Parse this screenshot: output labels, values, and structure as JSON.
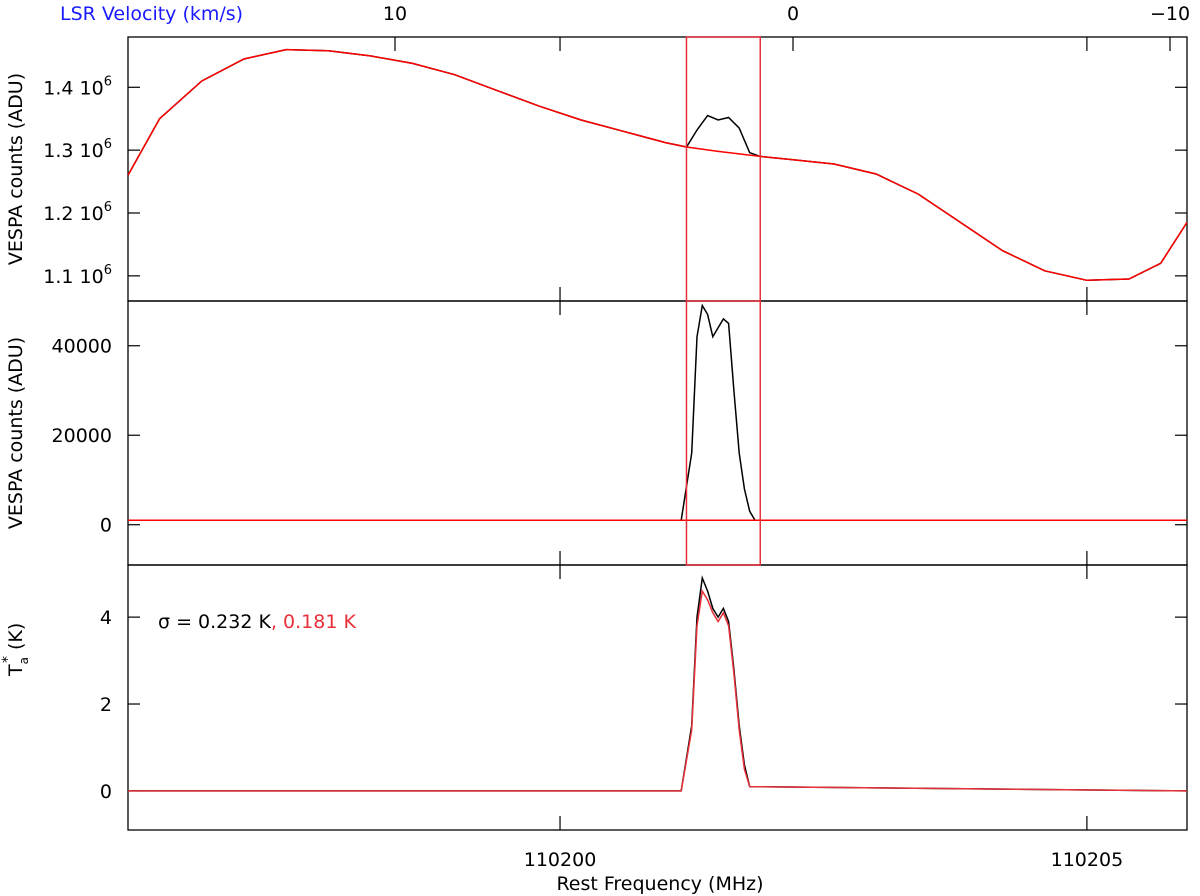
{
  "colors": {
    "black": "#000000",
    "red": "#ff0000",
    "pinkred": "#e8303a",
    "blue": "#1a1aff"
  },
  "top_axis": {
    "label": "LSR Velocity (km/s)",
    "ticks": [
      {
        "value": 10,
        "label": "10"
      },
      {
        "value": 0,
        "label": "0"
      },
      {
        "value": -10,
        "label": "−10"
      }
    ]
  },
  "x_axis": {
    "label": "Rest Frequency (MHz)",
    "ticks": [
      {
        "value": 110200,
        "label": "110200"
      },
      {
        "value": 110205,
        "label": "110205"
      }
    ]
  },
  "window_marker": {
    "range_mhz": [
      110201.2,
      110201.9
    ]
  },
  "panels": {
    "top": {
      "ylabel": "VESPA counts (ADU)",
      "ticks": [
        {
          "value": 1400000,
          "mantissa": "1.4",
          "exp_base": "10",
          "exp": "6"
        },
        {
          "value": 1300000,
          "mantissa": "1.3",
          "exp_base": "10",
          "exp": "6"
        },
        {
          "value": 1200000,
          "mantissa": "1.2",
          "exp_base": "10",
          "exp": "6"
        },
        {
          "value": 1100000,
          "mantissa": "1.1",
          "exp_base": "10",
          "exp": "6"
        }
      ]
    },
    "middle": {
      "ylabel": "VESPA counts (ADU)",
      "ticks": [
        {
          "value": 0,
          "label": "0"
        },
        {
          "value": 20000,
          "label": "20000"
        },
        {
          "value": 40000,
          "label": "40000"
        }
      ]
    },
    "bottom": {
      "ylabel_base": "T",
      "ylabel_sup": "*",
      "ylabel_sub": "a",
      "ylabel_unit": " (K)",
      "ticks": [
        {
          "value": 0,
          "label": "0"
        },
        {
          "value": 2,
          "label": "2"
        },
        {
          "value": 4,
          "label": "4"
        }
      ],
      "sigma_symbol": "σ",
      "sigma_black": " = 0.232 K",
      "sigma_red": ", 0.181 K"
    }
  },
  "chart_data": {
    "type": "line",
    "x_unit": "MHz",
    "xlim": [
      110195.9,
      110205.95
    ],
    "panels": [
      {
        "name": "raw",
        "ylim": [
          1060000,
          1480000
        ],
        "series": [
          {
            "name": "data",
            "color": "#000000",
            "x": [
              110195.9,
              110196.2,
              110196.6,
              110197.0,
              110197.4,
              110197.8,
              110198.2,
              110198.6,
              110199.0,
              110199.4,
              110199.8,
              110200.2,
              110200.6,
              110201.0,
              110201.2,
              110201.3,
              110201.4,
              110201.5,
              110201.6,
              110201.7,
              110201.8,
              110201.9,
              110202.2,
              110202.6,
              110203.0,
              110203.4,
              110203.8,
              110204.2,
              110204.6,
              110205.0,
              110205.4,
              110205.7,
              110205.95
            ],
            "y": [
              1260000,
              1350000,
              1410000,
              1445000,
              1460000,
              1458000,
              1450000,
              1438000,
              1420000,
              1395000,
              1370000,
              1348000,
              1330000,
              1312000,
              1305000,
              1332000,
              1355000,
              1348000,
              1352000,
              1335000,
              1296000,
              1290000,
              1285000,
              1278000,
              1262000,
              1230000,
              1185000,
              1140000,
              1108000,
              1093000,
              1095000,
              1120000,
              1185000
            ]
          },
          {
            "name": "baseline",
            "color": "#ff0000",
            "x": [
              110195.9,
              110196.2,
              110196.6,
              110197.0,
              110197.4,
              110197.8,
              110198.2,
              110198.6,
              110199.0,
              110199.4,
              110199.8,
              110200.2,
              110200.6,
              110201.0,
              110201.2,
              110201.5,
              110201.9,
              110202.2,
              110202.6,
              110203.0,
              110203.4,
              110203.8,
              110204.2,
              110204.6,
              110205.0,
              110205.4,
              110205.7,
              110205.95
            ],
            "y": [
              1260000,
              1350000,
              1410000,
              1445000,
              1460000,
              1458000,
              1450000,
              1438000,
              1420000,
              1395000,
              1370000,
              1348000,
              1330000,
              1312000,
              1305000,
              1298000,
              1290000,
              1285000,
              1278000,
              1262000,
              1230000,
              1185000,
              1140000,
              1108000,
              1093000,
              1095000,
              1120000,
              1185000
            ]
          }
        ]
      },
      {
        "name": "baseline-subtracted",
        "ylim": [
          -9000,
          50000
        ],
        "series": [
          {
            "name": "data",
            "color": "#000000",
            "x": [
              110195.9,
              110201.15,
              110201.25,
              110201.3,
              110201.35,
              110201.4,
              110201.45,
              110201.5,
              110201.55,
              110201.6,
              110201.65,
              110201.7,
              110201.75,
              110201.8,
              110201.85,
              110205.95
            ],
            "y": [
              1000,
              1000,
              16000,
              42000,
              49000,
              47000,
              42000,
              44000,
              46000,
              45000,
              30000,
              16000,
              8000,
              3000,
              1000,
              1000
            ]
          },
          {
            "name": "fit",
            "color": "#ff0000",
            "x": [
              110195.9,
              110205.95
            ],
            "y": [
              1000,
              1000
            ]
          }
        ]
      },
      {
        "name": "calibrated",
        "ylim": [
          -0.9,
          5.2
        ],
        "series": [
          {
            "name": "spectrum 1",
            "color": "#000000",
            "x": [
              110195.9,
              110201.15,
              110201.25,
              110201.3,
              110201.35,
              110201.4,
              110201.45,
              110201.5,
              110201.55,
              110201.6,
              110201.65,
              110201.7,
              110201.75,
              110201.8,
              110205.95
            ],
            "y": [
              0,
              0,
              1.5,
              4.0,
              4.9,
              4.6,
              4.2,
              4.0,
              4.2,
              3.9,
              2.8,
              1.5,
              0.6,
              0.1,
              0
            ]
          },
          {
            "name": "spectrum 2",
            "color": "#e8303a",
            "x": [
              110195.9,
              110201.15,
              110201.25,
              110201.3,
              110201.35,
              110201.4,
              110201.45,
              110201.5,
              110201.55,
              110201.6,
              110201.65,
              110201.7,
              110201.75,
              110201.8,
              110205.95
            ],
            "y": [
              0,
              0,
              1.4,
              3.8,
              4.6,
              4.4,
              4.1,
              3.9,
              4.1,
              3.8,
              2.7,
              1.4,
              0.5,
              0.1,
              0
            ]
          }
        ]
      }
    ]
  }
}
